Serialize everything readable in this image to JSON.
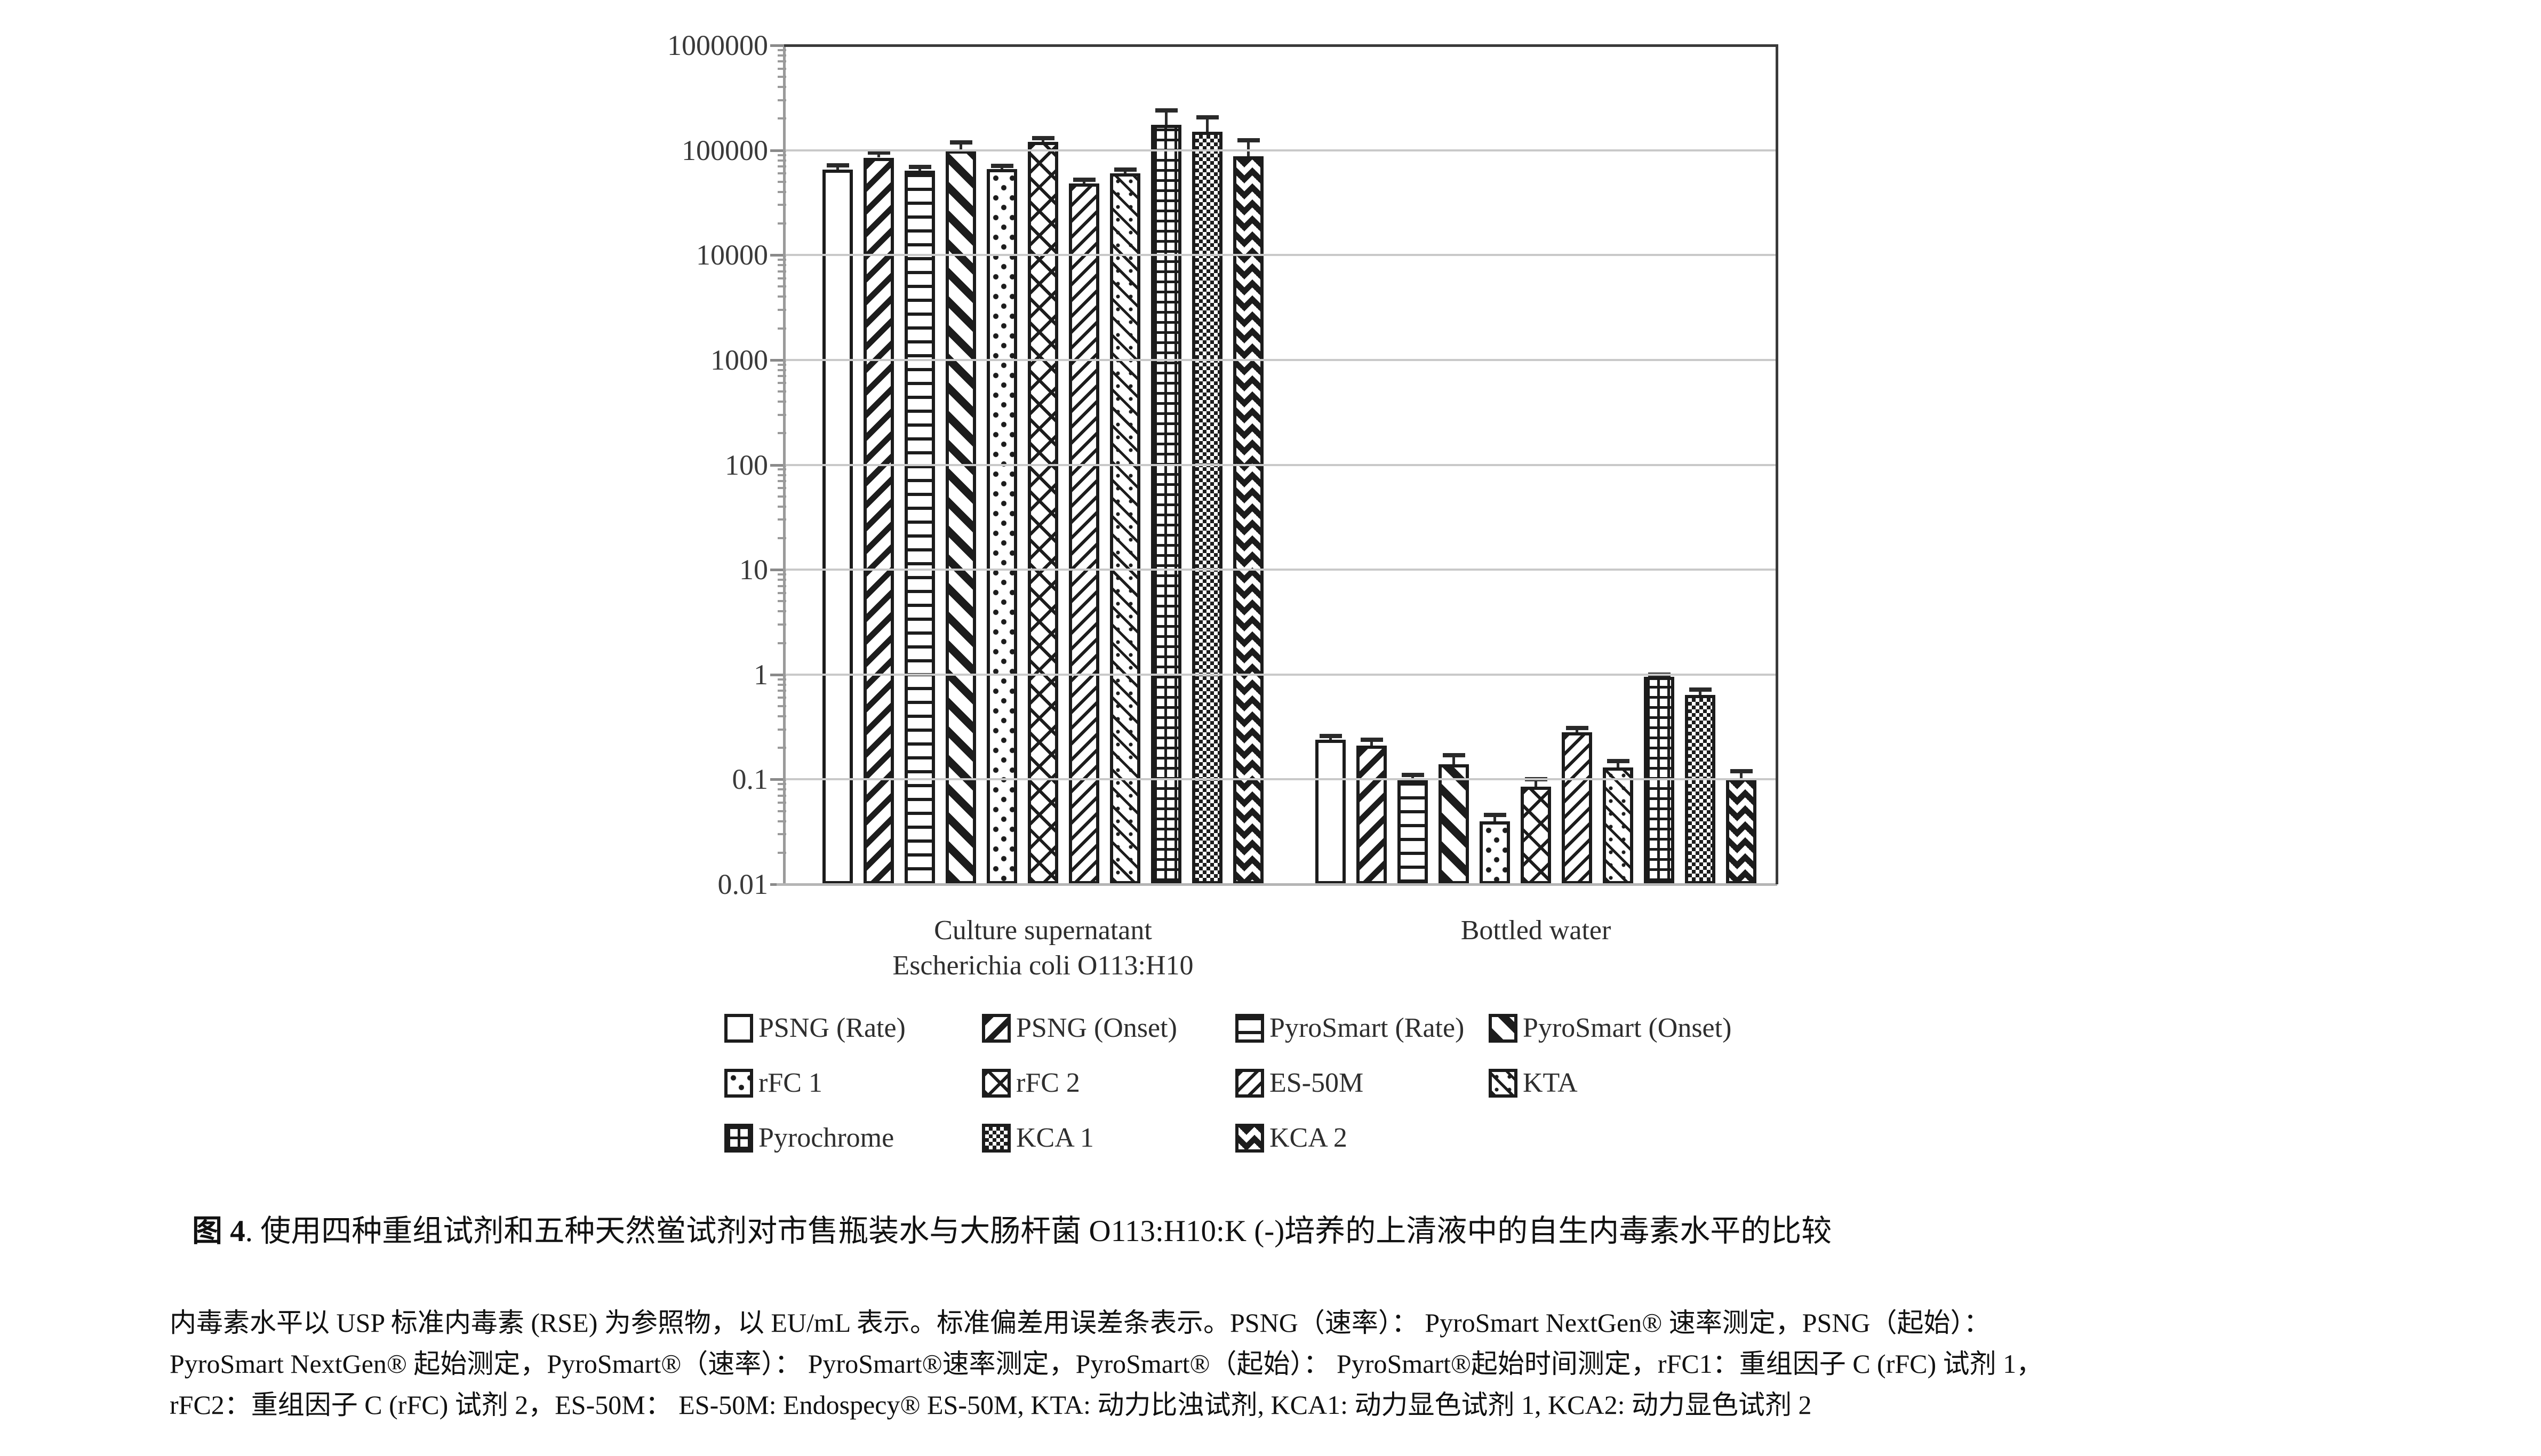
{
  "colors": {
    "ink": "#1c1c1c",
    "axis": "#9a9a9a",
    "gridline": "#c9c9c9",
    "plot_border": "#3a3a3a",
    "text": "#111111"
  },
  "chart_data": {
    "type": "bar",
    "scale": "log",
    "ylim": [
      0.01,
      1000000
    ],
    "y_ticks": [
      "1000000",
      "100000",
      "10000",
      "1000",
      "100",
      "10",
      "1",
      "0.1",
      "0.01"
    ],
    "grid": true,
    "legend_position": "bottom",
    "categories": [
      {
        "label_lines": [
          "Culture supernatant",
          "Escherichia coli O113:H10"
        ]
      },
      {
        "label_lines": [
          "Bottled water"
        ]
      }
    ],
    "series": [
      {
        "name": "PSNG (Rate)",
        "pattern": "solid-white",
        "values": [
          65000,
          0.24
        ],
        "errors_hi": [
          72000,
          0.26
        ]
      },
      {
        "name": "PSNG (Onset)",
        "pattern": "diagonal-stripes",
        "values": [
          85000,
          0.21
        ],
        "errors_hi": [
          95000,
          0.24
        ]
      },
      {
        "name": "PyroSmart (Rate)",
        "pattern": "horizontal-lines",
        "values": [
          64000,
          0.1
        ],
        "errors_hi": [
          69000,
          0.11
        ]
      },
      {
        "name": "PyroSmart (Onset)",
        "pattern": "thick-diagonal-stripes",
        "values": [
          100000,
          0.14
        ],
        "errors_hi": [
          118000,
          0.17
        ]
      },
      {
        "name": "rFC 1",
        "pattern": "dots",
        "values": [
          66000,
          0.04
        ],
        "errors_hi": [
          71000,
          0.046
        ]
      },
      {
        "name": "rFC 2",
        "pattern": "diamond-lattice",
        "values": [
          120000,
          0.085
        ],
        "errors_hi": [
          130000,
          0.1
        ]
      },
      {
        "name": "ES-50M",
        "pattern": "thin-diagonal-stripes",
        "values": [
          48000,
          0.28
        ],
        "errors_hi": [
          52000,
          0.31
        ]
      },
      {
        "name": "KTA",
        "pattern": "diagonal-dash-dot",
        "values": [
          60000,
          0.13
        ],
        "errors_hi": [
          65000,
          0.15
        ]
      },
      {
        "name": "Pyrochrome",
        "pattern": "grid-crosshatch",
        "values": [
          175000,
          0.95
        ],
        "errors_hi": [
          240000,
          1.0
        ]
      },
      {
        "name": "KCA 1",
        "pattern": "fine-checkerboard",
        "values": [
          150000,
          0.64
        ],
        "errors_hi": [
          205000,
          0.72
        ]
      },
      {
        "name": "KCA 2",
        "pattern": "zigzag",
        "values": [
          88000,
          0.103
        ],
        "errors_hi": [
          125000,
          0.12
        ]
      }
    ],
    "legend_rows": [
      [
        0,
        1,
        2,
        3
      ],
      [
        4,
        5,
        6,
        7
      ],
      [
        8,
        9,
        10
      ]
    ]
  },
  "caption": {
    "figure_label": "图 4",
    "text": ". 使用四种重组试剂和五种天然鲎试剂对市售瓶装水与大肠杆菌 O113:H10:K (-)培养的上清液中的自生内毒素水平的比较"
  },
  "notes": {
    "lines": [
      "内毒素水平以 USP 标准内毒素 (RSE) 为参照物，以 EU/mL 表示。标准偏差用误差条表示。PSNG（速率）： PyroSmart NextGen® 速率测定，PSNG（起始）：",
      "PyroSmart NextGen® 起始测定，PyroSmart®（速率）： PyroSmart®速率测定，PyroSmart®（起始）： PyroSmart®起始时间测定，rFC1：重组因子 C (rFC) 试剂 1，",
      "rFC2：重组因子 C (rFC) 试剂 2，ES-50M： ES-50M: Endospecy® ES-50M, KTA: 动力比浊试剂, KCA1: 动力显色试剂 1, KCA2: 动力显色试剂 2"
    ]
  }
}
